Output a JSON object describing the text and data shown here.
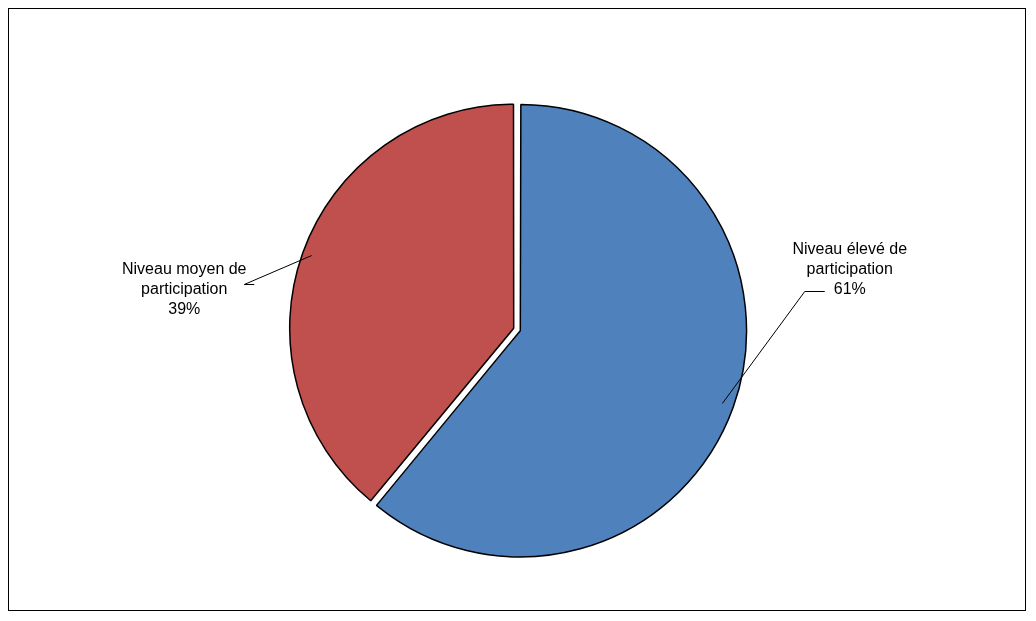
{
  "chart_data": {
    "type": "pie",
    "categories": [
      "Niveau élevé de participation",
      "Niveau moyen de participation"
    ],
    "values": [
      61,
      39
    ],
    "colors": [
      "#4f81bd",
      "#c0504d"
    ],
    "value_labels": [
      "61%",
      "39%"
    ],
    "legend": false
  }
}
